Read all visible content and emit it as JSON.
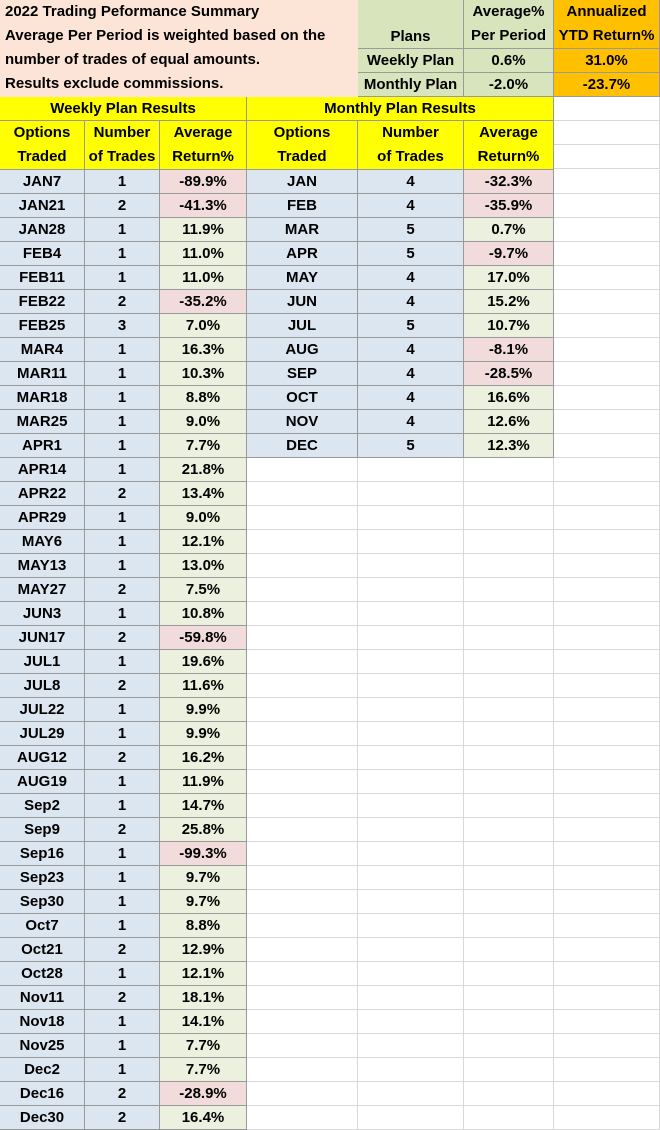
{
  "summary": {
    "notes": [
      "2022 Trading Peformance Summary",
      "Average Per Period is weighted based on the",
      "number of trades of equal amounts.",
      "Results exclude commissions."
    ],
    "header": {
      "plans": "Plans",
      "avg_line1": "Average%",
      "avg_line2": "Per Period",
      "ann_line1": "Annualized",
      "ann_line2": "YTD Return%"
    },
    "rows": [
      {
        "plan": "Weekly Plan",
        "avg": "0.6%",
        "annualized": "31.0%"
      },
      {
        "plan": "Monthly Plan",
        "avg": "-2.0%",
        "annualized": "-23.7%"
      }
    ]
  },
  "weekly": {
    "title": "Weekly Plan Results",
    "headers": [
      {
        "l1": "Options",
        "l2": "Traded"
      },
      {
        "l1": "Number",
        "l2": "of Trades"
      },
      {
        "l1": "Average",
        "l2": "Return%"
      }
    ],
    "rows": [
      {
        "period": "JAN7",
        "trades": "1",
        "ret": "-89.9%",
        "neg": true
      },
      {
        "period": "JAN21",
        "trades": "2",
        "ret": "-41.3%",
        "neg": true
      },
      {
        "period": "JAN28",
        "trades": "1",
        "ret": "11.9%",
        "neg": false
      },
      {
        "period": "FEB4",
        "trades": "1",
        "ret": "11.0%",
        "neg": false
      },
      {
        "period": "FEB11",
        "trades": "1",
        "ret": "11.0%",
        "neg": false
      },
      {
        "period": "FEB22",
        "trades": "2",
        "ret": "-35.2%",
        "neg": true
      },
      {
        "period": "FEB25",
        "trades": "3",
        "ret": "7.0%",
        "neg": false
      },
      {
        "period": "MAR4",
        "trades": "1",
        "ret": "16.3%",
        "neg": false
      },
      {
        "period": "MAR11",
        "trades": "1",
        "ret": "10.3%",
        "neg": false
      },
      {
        "period": "MAR18",
        "trades": "1",
        "ret": "8.8%",
        "neg": false
      },
      {
        "period": "MAR25",
        "trades": "1",
        "ret": "9.0%",
        "neg": false
      },
      {
        "period": "APR1",
        "trades": "1",
        "ret": "7.7%",
        "neg": false
      },
      {
        "period": "APR14",
        "trades": "1",
        "ret": "21.8%",
        "neg": false
      },
      {
        "period": "APR22",
        "trades": "2",
        "ret": "13.4%",
        "neg": false
      },
      {
        "period": "APR29",
        "trades": "1",
        "ret": "9.0%",
        "neg": false
      },
      {
        "period": "MAY6",
        "trades": "1",
        "ret": "12.1%",
        "neg": false
      },
      {
        "period": "MAY13",
        "trades": "1",
        "ret": "13.0%",
        "neg": false
      },
      {
        "period": "MAY27",
        "trades": "2",
        "ret": "7.5%",
        "neg": false
      },
      {
        "period": "JUN3",
        "trades": "1",
        "ret": "10.8%",
        "neg": false
      },
      {
        "period": "JUN17",
        "trades": "2",
        "ret": "-59.8%",
        "neg": true
      },
      {
        "period": "JUL1",
        "trades": "1",
        "ret": "19.6%",
        "neg": false
      },
      {
        "period": "JUL8",
        "trades": "2",
        "ret": "11.6%",
        "neg": false
      },
      {
        "period": "JUL22",
        "trades": "1",
        "ret": "9.9%",
        "neg": false
      },
      {
        "period": "JUL29",
        "trades": "1",
        "ret": "9.9%",
        "neg": false
      },
      {
        "period": "AUG12",
        "trades": "2",
        "ret": "16.2%",
        "neg": false
      },
      {
        "period": "AUG19",
        "trades": "1",
        "ret": "11.9%",
        "neg": false
      },
      {
        "period": "Sep2",
        "trades": "1",
        "ret": "14.7%",
        "neg": false
      },
      {
        "period": "Sep9",
        "trades": "2",
        "ret": "25.8%",
        "neg": false
      },
      {
        "period": "Sep16",
        "trades": "1",
        "ret": "-99.3%",
        "neg": true
      },
      {
        "period": "Sep23",
        "trades": "1",
        "ret": "9.7%",
        "neg": false
      },
      {
        "period": "Sep30",
        "trades": "1",
        "ret": "9.7%",
        "neg": false
      },
      {
        "period": "Oct7",
        "trades": "1",
        "ret": "8.8%",
        "neg": false
      },
      {
        "period": "Oct21",
        "trades": "2",
        "ret": "12.9%",
        "neg": false
      },
      {
        "period": "Oct28",
        "trades": "1",
        "ret": "12.1%",
        "neg": false
      },
      {
        "period": "Nov11",
        "trades": "2",
        "ret": "18.1%",
        "neg": false
      },
      {
        "period": "Nov18",
        "trades": "1",
        "ret": "14.1%",
        "neg": false
      },
      {
        "period": "Nov25",
        "trades": "1",
        "ret": "7.7%",
        "neg": false
      },
      {
        "period": "Dec2",
        "trades": "1",
        "ret": "7.7%",
        "neg": false
      },
      {
        "period": "Dec16",
        "trades": "2",
        "ret": "-28.9%",
        "neg": true
      },
      {
        "period": "Dec30",
        "trades": "2",
        "ret": "16.4%",
        "neg": false
      }
    ]
  },
  "monthly": {
    "title": "Monthly Plan Results",
    "headers": [
      {
        "l1": "Options",
        "l2": "Traded"
      },
      {
        "l1": "Number",
        "l2": "of Trades"
      },
      {
        "l1": "Average",
        "l2": "Return%"
      }
    ],
    "rows": [
      {
        "period": "JAN",
        "trades": "4",
        "ret": "-32.3%",
        "neg": true
      },
      {
        "period": "FEB",
        "trades": "4",
        "ret": "-35.9%",
        "neg": true
      },
      {
        "period": "MAR",
        "trades": "5",
        "ret": "0.7%",
        "neg": false
      },
      {
        "period": "APR",
        "trades": "5",
        "ret": "-9.7%",
        "neg": true
      },
      {
        "period": "MAY",
        "trades": "4",
        "ret": "17.0%",
        "neg": false
      },
      {
        "period": "JUN",
        "trades": "4",
        "ret": "15.2%",
        "neg": false
      },
      {
        "period": "JUL",
        "trades": "5",
        "ret": "10.7%",
        "neg": false
      },
      {
        "period": "AUG",
        "trades": "4",
        "ret": "-8.1%",
        "neg": true
      },
      {
        "period": "SEP",
        "trades": "4",
        "ret": "-28.5%",
        "neg": true
      },
      {
        "period": "OCT",
        "trades": "4",
        "ret": "16.6%",
        "neg": false
      },
      {
        "period": "NOV",
        "trades": "4",
        "ret": "12.6%",
        "neg": false
      },
      {
        "period": "DEC",
        "trades": "5",
        "ret": "12.3%",
        "neg": false
      }
    ]
  },
  "colors": {
    "title_bar": "#ffff00",
    "annualized": "#ffc000",
    "notes_bg": "#fce4d6",
    "summary_bg": "#d8e4bc",
    "period_bg": "#dce6f1",
    "positive_bg": "#ebf1de",
    "negative_bg": "#f2dcdb"
  }
}
